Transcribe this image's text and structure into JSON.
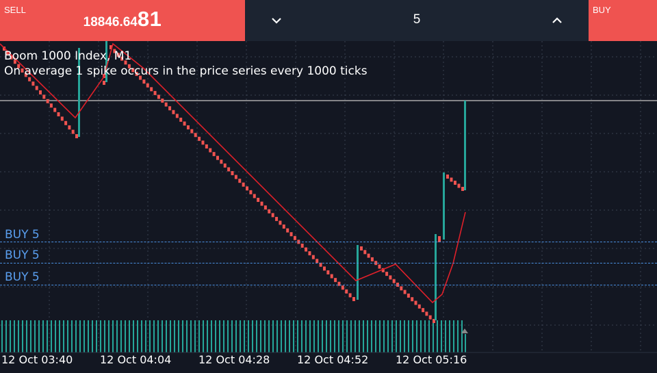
{
  "trade_bar": {
    "sell_label": "SELL",
    "buy_label": "BUY",
    "price_main": "18846.64",
    "price_big": "81",
    "lot_value": "5",
    "colors": {
      "sell": "#ef5350",
      "buy": "#ef5350",
      "bar_bg": "#1c2431"
    }
  },
  "chart": {
    "symbol_line": "Boom 1000 Index, M1",
    "description": "On average 1 spike occurs in the price series every 1000 ticks",
    "orders": [
      {
        "label": "BUY 5"
      },
      {
        "label": "BUY 5"
      },
      {
        "label": "BUY 5"
      }
    ],
    "time_labels": [
      "12 Oct 03:40",
      "12 Oct 04:04",
      "12 Oct 04:28",
      "12 Oct 04:52",
      "12 Oct 05:16"
    ],
    "colors": {
      "background": "#131722",
      "bull": "#26a69a",
      "bear": "#ef5350",
      "ma": "#e0202a",
      "order_line": "#4a90e2"
    }
  }
}
